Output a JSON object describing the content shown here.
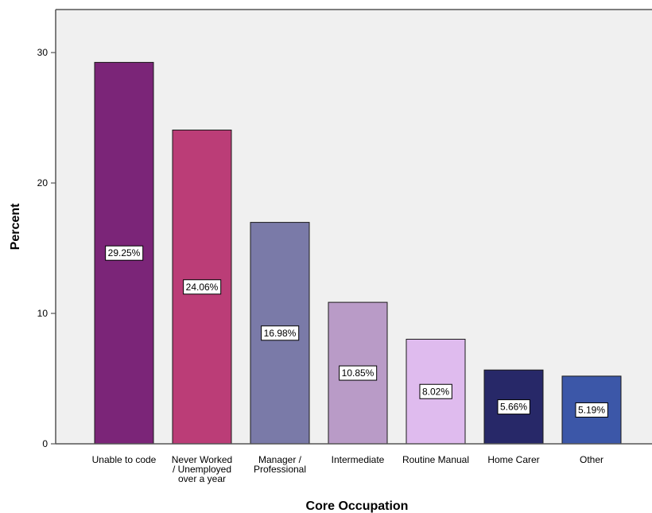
{
  "chart_data": {
    "type": "bar",
    "xlabel": "Core Occupation",
    "ylabel": "Percent",
    "ylim": [
      0,
      33.3
    ],
    "yticks": [
      0,
      10,
      20,
      30
    ],
    "grid": false,
    "categories": [
      [
        "Unable to code"
      ],
      [
        "Never Worked",
        "/ Unemployed",
        "over a year"
      ],
      [
        "Manager /",
        "Professional"
      ],
      [
        "Intermediate"
      ],
      [
        "Routine Manual"
      ],
      [
        "Home Carer"
      ],
      [
        "Other"
      ]
    ],
    "values": [
      29.25,
      24.06,
      16.98,
      10.85,
      8.02,
      5.66,
      5.19
    ],
    "data_labels": [
      "29.25%",
      "24.06%",
      "16.98%",
      "10.85%",
      "8.02%",
      "5.66%",
      "5.19%"
    ],
    "colors": [
      "#7b2578",
      "#bb3d77",
      "#7a7aa8",
      "#b99bc7",
      "#dfbbee",
      "#272868",
      "#3c57a8"
    ],
    "plot_background": "#f0f0f0"
  }
}
